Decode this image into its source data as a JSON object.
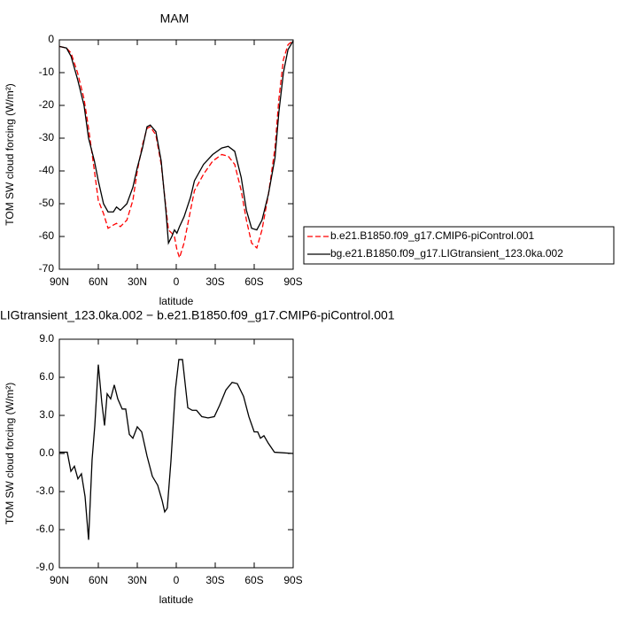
{
  "chart_data": [
    {
      "type": "line",
      "title": "MAM",
      "x_label": "latitude",
      "y_label": "TOM SW cloud forcing (W/m²)",
      "x": [
        90,
        84.5,
        81,
        76,
        71,
        67.5,
        63,
        60,
        56,
        52.5,
        48.4,
        46,
        43,
        38,
        33.4,
        30,
        26,
        22.5,
        20,
        15.7,
        11.6,
        8,
        6,
        3.4,
        1.4,
        -0.5,
        -2.5,
        -6,
        -11,
        -14,
        -21,
        -28,
        -35,
        -40,
        -45,
        -50,
        -54,
        -58,
        -62,
        -66,
        -71,
        -76,
        -79,
        -82.5,
        -86,
        -90
      ],
      "series": [
        {
          "name": "b.e21.B1850.f09_g17.CMIP6-piControl.001",
          "color": "#ff0000",
          "line_style": "dashed",
          "values": [
            -2,
            -2.5,
            -4,
            -10,
            -18,
            -27,
            -40,
            -49,
            -53,
            -57.5,
            -56.5,
            -56,
            -57,
            -55,
            -49,
            -40,
            -32,
            -27,
            -26.5,
            -29,
            -38,
            -51,
            -58,
            -59,
            -60,
            -64,
            -66.5,
            -62,
            -52,
            -46,
            -41,
            -37,
            -35,
            -35.5,
            -38,
            -46,
            -55,
            -62,
            -63.5,
            -58,
            -47,
            -33,
            -18,
            -6,
            -1.5,
            -0.2
          ]
        },
        {
          "name": "bg.e21.B1850.f09_g17.LIGtransient_123.0ka.002",
          "color": "#000000",
          "line_style": "solid",
          "values": [
            -2,
            -2.5,
            -5,
            -12,
            -20,
            -30,
            -37,
            -43,
            -50,
            -52.5,
            -52.5,
            -51,
            -52,
            -50,
            -45,
            -39,
            -33,
            -26.5,
            -26,
            -28,
            -37,
            -52,
            -62,
            -60,
            -58,
            -59,
            -57,
            -54,
            -48,
            -43,
            -38,
            -35,
            -33,
            -32.5,
            -34,
            -42,
            -52,
            -57.5,
            -58,
            -55,
            -47,
            -36,
            -22,
            -10,
            -3,
            -0.3
          ]
        }
      ],
      "xlim": [
        90,
        -90
      ],
      "xticks": [
        {
          "value": 90,
          "label": "90N"
        },
        {
          "value": 60,
          "label": "60N"
        },
        {
          "value": 30,
          "label": "30N"
        },
        0,
        {
          "value": -30,
          "label": "30S"
        },
        {
          "value": -60,
          "label": "60S"
        },
        {
          "value": -90,
          "label": "90S"
        }
      ],
      "ylim": [
        -70,
        0
      ],
      "yticks": [
        0,
        -10,
        -20,
        -30,
        -40,
        -50,
        -60,
        -70
      ],
      "legend": "right"
    },
    {
      "type": "line",
      "title": "LIGtransient_123.0ka.002 − b.e21.B1850.f09_g17.CMIP6-piControl.001",
      "x_label": "latitude",
      "y_label": "TOM SW cloud forcing (W/m²)",
      "x": [
        90,
        83.9,
        81.1,
        78.4,
        75.7,
        73,
        70.2,
        67.5,
        64.8,
        62.7,
        60,
        57.3,
        55.2,
        53.2,
        50.5,
        47.7,
        45,
        41.6,
        38.9,
        36.1,
        33.4,
        30,
        26.6,
        22.5,
        18.4,
        14.3,
        10.9,
        8.9,
        6.9,
        4.1,
        0.7,
        -2,
        -4.8,
        -8.9,
        -12.3,
        -15.6,
        -19.7,
        -24.5,
        -29.3,
        -33.4,
        -38.2,
        -43,
        -47,
        -51.8,
        -55.9,
        -60,
        -62.7,
        -64.8,
        -67.5,
        -70.9,
        -75.6,
        -90
      ],
      "values": [
        0.1,
        0.1,
        -1.4,
        -1,
        -2,
        -1.6,
        -3.4,
        -6.8,
        -0.5,
        2.2,
        7,
        4,
        2.2,
        4.7,
        4.3,
        5.4,
        4.3,
        3.5,
        3.5,
        1.5,
        1.2,
        2.1,
        1.7,
        -0.2,
        -1.8,
        -2.5,
        -3.7,
        -4.6,
        -4.3,
        -0.6,
        5,
        7.4,
        7.4,
        3.6,
        3.4,
        3.4,
        2.9,
        2.8,
        2.9,
        3.8,
        5,
        5.6,
        5.5,
        4.5,
        2.9,
        1.7,
        1.7,
        1.2,
        1.4,
        0.8,
        0.1,
        0
      ],
      "color": "#000000",
      "xlim": [
        90,
        -90
      ],
      "xticks": [
        {
          "value": 90,
          "label": "90N"
        },
        {
          "value": 60,
          "label": "60N"
        },
        {
          "value": 30,
          "label": "30N"
        },
        0,
        {
          "value": -30,
          "label": "30S"
        },
        {
          "value": -60,
          "label": "60S"
        },
        {
          "value": -90,
          "label": "90S"
        }
      ],
      "ylim": [
        -9,
        9
      ],
      "yticks": [
        {
          "value": 9,
          "label": "9.0"
        },
        {
          "value": 6,
          "label": "6.0"
        },
        {
          "value": 3,
          "label": "3.0"
        },
        {
          "value": 0,
          "label": "0.0"
        },
        {
          "value": -3,
          "label": "-3.0"
        },
        {
          "value": -6,
          "label": "-6.0"
        },
        {
          "value": -9,
          "label": "-9.0"
        }
      ]
    }
  ]
}
